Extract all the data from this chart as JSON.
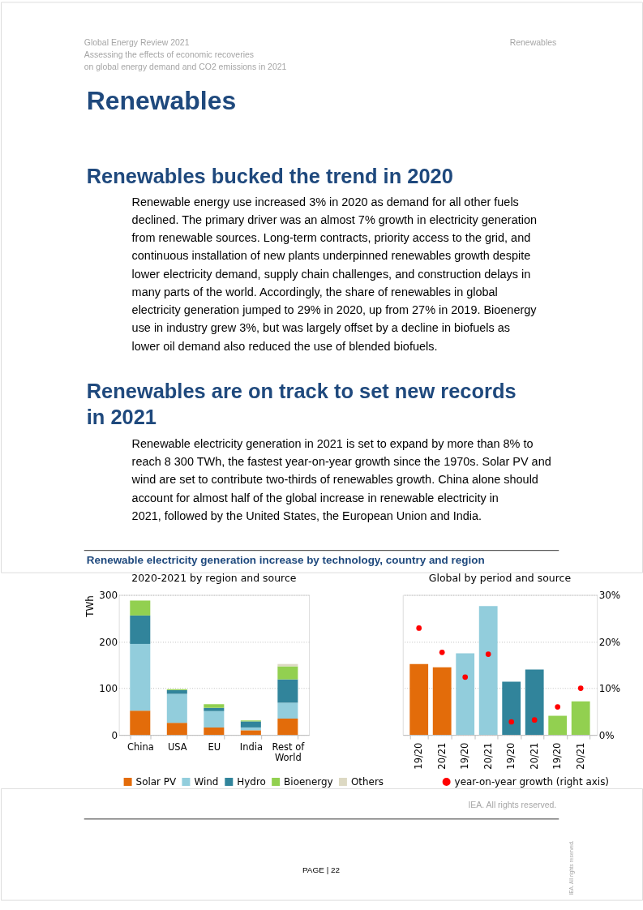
{
  "chart_data": [
    {
      "type": "bar",
      "stacked": true,
      "title": "2020-2021 by region and source",
      "ylabel": "TWh",
      "categories": [
        "China",
        "USA",
        "EU",
        "India",
        "Rest of World"
      ],
      "series": [
        {
          "name": "Solar PV",
          "color": "#e36c0a",
          "values": [
            52,
            26,
            16,
            10,
            35
          ]
        },
        {
          "name": "Wind",
          "color": "#92cddc",
          "values": [
            143,
            62,
            35,
            6,
            34
          ]
        },
        {
          "name": "Hydro",
          "color": "#31849b",
          "values": [
            61,
            8,
            7,
            13,
            50
          ]
        },
        {
          "name": "Bioenergy",
          "color": "#92d050",
          "values": [
            32,
            2,
            8,
            2,
            28
          ]
        },
        {
          "name": "Others",
          "color": "#ddd9c3",
          "values": [
            0,
            0,
            0,
            0,
            5
          ]
        }
      ],
      "ylim": [
        0,
        300
      ],
      "yticks": [
        0,
        100,
        200,
        300
      ],
      "grid": "y",
      "legend": "bottom",
      "annotations": [
        "Global Energy Review 2021",
        "Assessing the effects of economic recoveries",
        "on global energy demand and CO2 emissions in 2021",
        "Renewables",
        "Renewables",
        "Renewables bucked the trend in 2020",
        "Renewable energy use increased 3% in 2020 as demand for all other fuels declined. The primary driver was an almost 7% growth in electricity generation from renewable sources. Long-term contracts, priority access to the grid, and continuous installation of new plants underpinned renewables growth despite lower electricity demand, supply chain challenges, and construction delays in many parts of the world. Accordingly, the share of renewables in global electricity generation jumped to 29% in 2020, up from 27% in 2019. Bioenergy use in industry grew 3%, but was largely offset by a decline in biofuels as lower oil demand also reduced the use of blended biofuels.",
        "Renewables are on track to set new records in 2021",
        "Renewable electricity generation in 2021 is set to expand by more than 8% to reach 8 300 TWh, the fastest year-on-year growth since the 1970s. Solar PV and wind are set to contribute two-thirds of renewables growth. China alone should account for almost half of the global increase in renewable electricity in 2021, followed by the United States, the European Union and India.",
        "Renewable electricity generation increase by technology, country and region",
        "IEA. All rights reserved.",
        "PAGE | 22",
        "IEA. All rights reserved."
      ]
    },
    {
      "type": "bar",
      "title": "Global by period and source",
      "categories": [
        "19/20",
        "20/21",
        "19/20",
        "20/21",
        "19/20",
        "20/21",
        "19/20",
        "20/21"
      ],
      "series": [
        {
          "type": "bar",
          "colors": [
            "#e36c0a",
            "#e36c0a",
            "#92cddc",
            "#92cddc",
            "#31849b",
            "#31849b",
            "#92d050",
            "#92d050"
          ],
          "values": [
            152,
            145,
            175,
            276,
            114,
            140,
            41,
            72
          ]
        },
        {
          "type": "scatter",
          "name": "year-on-year growth (right axis)",
          "axis": "y2",
          "color": "#ff0000",
          "marker": "circle",
          "values": [
            22.9,
            17.7,
            12.4,
            17.3,
            2.8,
            3.2,
            6.0,
            10.0
          ]
        }
      ],
      "ylim": [
        0,
        300
      ],
      "y2lim": [
        0,
        30
      ],
      "y2ticks": [
        {
          "value": 0,
          "label": "0%"
        },
        {
          "value": 10,
          "label": "10%"
        },
        {
          "value": 20,
          "label": "20%"
        },
        {
          "value": 30,
          "label": "30%"
        }
      ],
      "tick_labels": [
        "x",
        "y2"
      ],
      "grid": "y",
      "legend": "bottom"
    }
  ]
}
